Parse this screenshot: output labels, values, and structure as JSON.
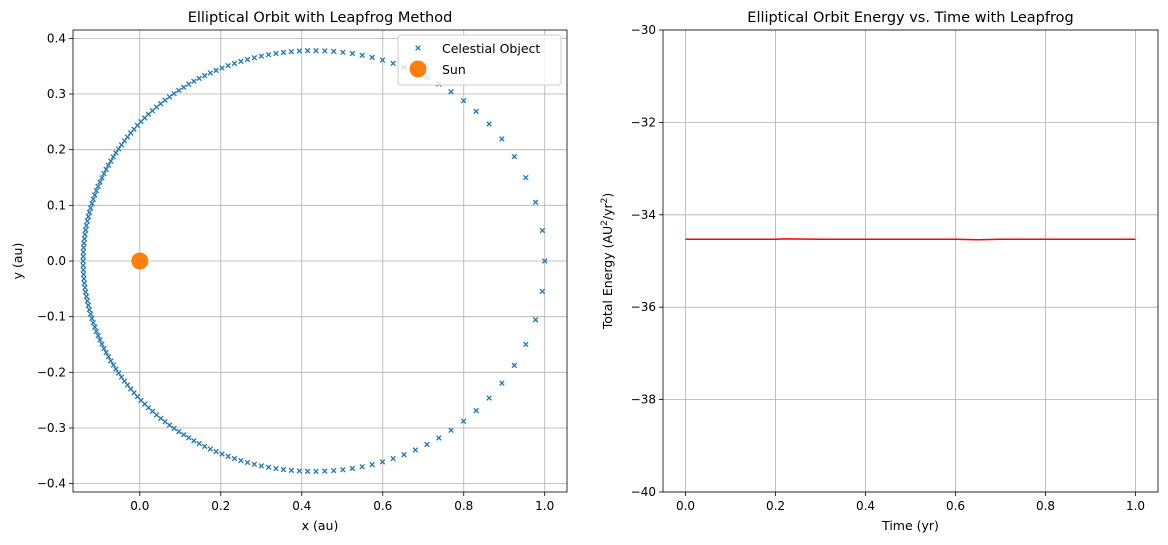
{
  "chart_data": [
    {
      "type": "scatter",
      "title": "Elliptical Orbit with Leapfrog Method",
      "xlabel": "x (au)",
      "ylabel": "y (au)",
      "xlim": [
        -0.165,
        1.055
      ],
      "ylim": [
        -0.415,
        0.415
      ],
      "xticks": [
        0.0,
        0.2,
        0.4,
        0.6,
        0.8,
        1.0
      ],
      "xtick_labels": [
        "0.0",
        "0.2",
        "0.4",
        "0.6",
        "0.8",
        "1.0"
      ],
      "yticks": [
        -0.4,
        -0.3,
        -0.2,
        -0.1,
        0.0,
        0.1,
        0.2,
        0.3,
        0.4
      ],
      "ytick_labels": [
        "−0.4",
        "−0.3",
        "−0.2",
        "−0.1",
        "0.0",
        "0.1",
        "0.2",
        "0.3",
        "0.4"
      ],
      "grid": true,
      "legend_position": "top-right",
      "series": [
        {
          "name": "Celestial Object",
          "marker": "x",
          "color": "#1f77b4",
          "orbit": {
            "x_min": -0.14,
            "x_max": 1.0,
            "y_max": 0.378,
            "count": 170
          }
        },
        {
          "name": "Sun",
          "marker": "circle",
          "color": "#ff7f0e",
          "points": [
            [
              0.0,
              0.0
            ]
          ]
        }
      ]
    },
    {
      "type": "line",
      "title": "Elliptical Orbit Energy vs. Time with Leapfrog",
      "xlabel": "Time (yr)",
      "ylabel_main": "Total Energy (AU",
      "ylabel_sup1": "2",
      "ylabel_mid": "/yr",
      "ylabel_sup2": "2",
      "ylabel_end": ")",
      "xlim": [
        -0.05,
        1.05
      ],
      "ylim": [
        -40,
        -30
      ],
      "xticks": [
        0.0,
        0.2,
        0.4,
        0.6,
        0.8,
        1.0
      ],
      "xtick_labels": [
        "0.0",
        "0.2",
        "0.4",
        "0.6",
        "0.8",
        "1.0"
      ],
      "yticks": [
        -40,
        -38,
        -36,
        -34,
        -32,
        -30
      ],
      "ytick_labels": [
        "−40",
        "−38",
        "−36",
        "−34",
        "−32",
        "−30"
      ],
      "grid": true,
      "series": [
        {
          "color": "#ff0000",
          "x": [
            0.0,
            0.1,
            0.2,
            0.22,
            0.3,
            0.4,
            0.5,
            0.6,
            0.65,
            0.7,
            0.8,
            0.9,
            1.0
          ],
          "y": [
            -34.53,
            -34.53,
            -34.53,
            -34.52,
            -34.53,
            -34.53,
            -34.53,
            -34.53,
            -34.54,
            -34.53,
            -34.53,
            -34.53,
            -34.53
          ]
        }
      ]
    }
  ]
}
